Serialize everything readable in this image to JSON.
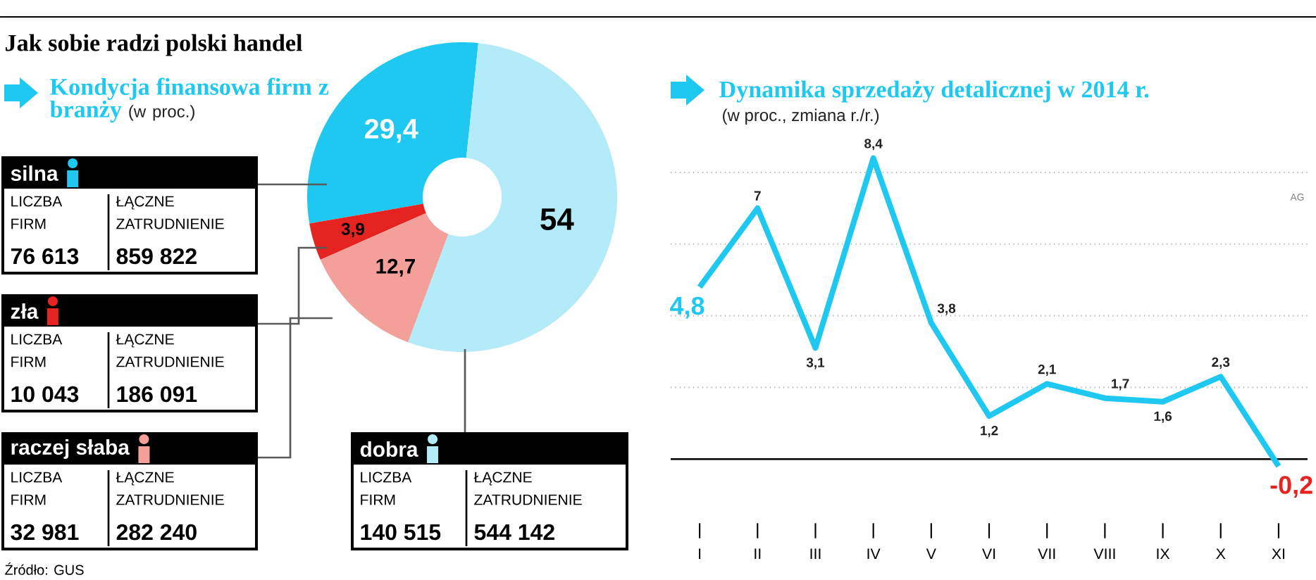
{
  "chart_data": [
    {
      "type": "donut",
      "title": "Kondycja finansowa firm z branży",
      "subtitle": "(w proc.)",
      "categories": [
        "silna",
        "zła",
        "raczej słaba",
        "dobra"
      ],
      "values": [
        29.4,
        3.9,
        12.7,
        54
      ],
      "colors": [
        "#1ec8f0",
        "#e52421",
        "#f4a09a",
        "#b3ecf8"
      ],
      "legend": "left",
      "value_labels": [
        "29,4",
        "3,9",
        "12,7",
        "54"
      ],
      "annotations": [
        "Jak sobie radzi polski handel",
        "LICZBA FIRM",
        "ŁĄCZNE ZATRUDNIENIE",
        "76 613",
        "859 822",
        "LICZBA FIRM",
        "ŁĄCZNE ZATRUDNIENIE",
        "10 043",
        "186 091",
        "LICZBA FIRM",
        "ŁĄCZNE ZATRUDNIENIE",
        "32 981",
        "282 240",
        "LICZBA FIRM",
        "ŁĄCZNE ZATRUDNIENIE",
        "140 515",
        "544 142",
        "Źródło: GUS"
      ]
    },
    {
      "type": "line",
      "title": "Dynamika sprzedaży detalicznej w 2014 r.",
      "subtitle": "(w proc., zmiana r./r.)",
      "categories": [
        "I",
        "II",
        "III",
        "IV",
        "V",
        "VI",
        "VII",
        "VIII",
        "IX",
        "X",
        "XI"
      ],
      "series": [
        {
          "color": "#1ec8f0",
          "values": [
            4.8,
            7,
            3.1,
            8.4,
            3.8,
            1.2,
            2.1,
            1.7,
            1.6,
            2.3,
            -0.2
          ],
          "value_labels": [
            "4,8",
            "7",
            "3,1",
            "8,4",
            "3,8",
            "1,2",
            "2,1",
            "1,7",
            "1,6",
            "2,3",
            "-0,2"
          ]
        }
      ],
      "yticks": [
        {
          "value": 0,
          "label": null
        },
        {
          "value": 2,
          "label": null
        },
        {
          "value": 4,
          "label": null
        },
        {
          "value": 6,
          "label": null
        },
        {
          "value": 8,
          "label": null
        }
      ],
      "grid": "y",
      "tick_labels": "x",
      "ref_lines": [
        {
          "axis": "y",
          "value": 0
        }
      ],
      "annotations": [
        "AG"
      ]
    }
  ]
}
